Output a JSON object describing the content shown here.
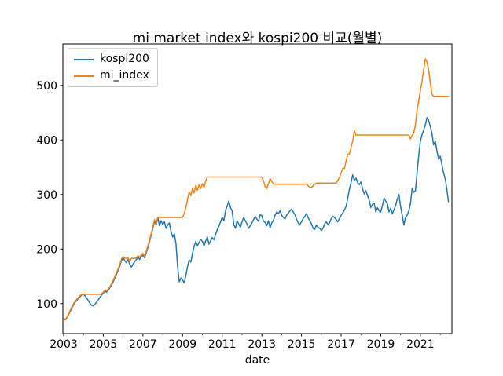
{
  "figure": {
    "title": "mi market index와 kospi200 비교(월별)",
    "xlabel": "date"
  },
  "legend": {
    "position": "upper left",
    "items": [
      {
        "label": "kospi200",
        "color": "#1f77b4"
      },
      {
        "label": "mi_index",
        "color": "#ff7f0e"
      }
    ]
  },
  "chart_data": {
    "type": "line",
    "title": "mi market index와 kospi200 비교(월별)",
    "xlabel": "date",
    "ylabel": "",
    "grid": false,
    "legend_position": "upper left",
    "frequency": "monthly",
    "x_start_year": 2003.0,
    "x_end_year": 2022.4167,
    "xlim": [
      2002.96,
      2022.59
    ],
    "ylim": [
      45,
      576
    ],
    "x_major_ticks": [
      2003,
      2005,
      2007,
      2009,
      2011,
      2013,
      2015,
      2017,
      2019,
      2021
    ],
    "x_minor_ticks": [
      2004,
      2006,
      2008,
      2010,
      2012,
      2014,
      2016,
      2018,
      2020,
      2022
    ],
    "y_ticks": [
      100,
      200,
      300,
      400,
      500
    ],
    "series": [
      {
        "name": "kospi200",
        "color": "#1f77b4",
        "values": [
          72,
          70,
          74,
          80,
          86,
          92,
          98,
          103,
          106,
          110,
          113,
          116,
          117,
          114,
          110,
          105,
          100,
          97,
          96,
          99,
          103,
          107,
          112,
          116,
          119,
          123,
          121,
          125,
          129,
          134,
          140,
          147,
          154,
          161,
          169,
          179,
          183,
          179,
          175,
          181,
          172,
          167,
          172,
          177,
          181,
          185,
          181,
          186,
          189,
          184,
          193,
          203,
          214,
          226,
          238,
          251,
          244,
          258,
          243,
          252,
          245,
          250,
          238,
          244,
          248,
          232,
          222,
          228,
          210,
          168,
          140,
          147,
          143,
          138,
          152,
          168,
          180,
          176,
          192,
          205,
          214,
          206,
          212,
          218,
          214,
          206,
          215,
          222,
          209,
          215,
          221,
          217,
          227,
          236,
          242,
          250,
          258,
          252,
          270,
          279,
          288,
          276,
          270,
          245,
          238,
          252,
          246,
          240,
          250,
          258,
          252,
          246,
          238,
          243,
          248,
          254,
          260,
          255,
          251,
          263,
          261,
          251,
          249,
          243,
          252,
          239,
          248,
          253,
          262,
          268,
          265,
          270,
          262,
          258,
          255,
          262,
          266,
          270,
          273,
          268,
          263,
          255,
          248,
          245,
          250,
          256,
          260,
          265,
          258,
          252,
          247,
          238,
          236,
          244,
          240,
          238,
          234,
          238,
          246,
          250,
          245,
          248,
          256,
          260,
          258,
          254,
          250,
          256,
          262,
          266,
          272,
          278,
          293,
          310,
          322,
          336,
          326,
          330,
          322,
          318,
          323,
          310,
          301,
          307,
          298,
          290,
          276,
          282,
          284,
          268,
          276,
          270,
          268,
          280,
          293,
          288,
          283,
          268,
          275,
          265,
          272,
          280,
          292,
          300,
          278,
          262,
          244,
          258,
          262,
          270,
          284,
          311,
          304,
          307,
          340,
          372,
          398,
          410,
          418,
          428,
          441,
          436,
          425,
          412,
          391,
          398,
          380,
          365,
          370,
          355,
          340,
          329,
          310,
          287
        ]
      },
      {
        "name": "mi_index",
        "color": "#ff7f0e",
        "values": [
          72,
          71,
          75,
          81,
          88,
          94,
          100,
          105,
          108,
          112,
          115,
          117,
          117,
          117,
          117,
          117,
          117,
          117,
          117,
          117,
          117,
          117,
          117,
          118,
          121,
          125,
          123,
          127,
          131,
          137,
          143,
          150,
          157,
          164,
          172,
          182,
          186,
          183,
          183,
          184,
          177,
          183,
          183,
          183,
          184,
          188,
          185,
          190,
          192,
          187,
          196,
          206,
          217,
          229,
          241,
          254,
          247,
          258,
          258,
          258,
          258,
          258,
          258,
          258,
          258,
          258,
          258,
          258,
          258,
          258,
          258,
          258,
          258,
          265,
          276,
          291,
          305,
          298,
          311,
          303,
          317,
          308,
          318,
          311,
          320,
          313,
          325,
          332,
          332,
          332,
          332,
          332,
          332,
          332,
          332,
          332,
          332,
          332,
          332,
          332,
          332,
          332,
          332,
          332,
          332,
          332,
          332,
          332,
          332,
          332,
          332,
          332,
          332,
          332,
          332,
          332,
          332,
          332,
          332,
          332,
          332,
          325,
          314,
          311,
          320,
          329,
          324,
          319,
          319,
          319,
          319,
          319,
          319,
          319,
          319,
          319,
          319,
          319,
          319,
          319,
          319,
          319,
          319,
          319,
          319,
          319,
          319,
          319,
          316,
          313,
          313,
          316,
          319,
          321,
          321,
          321,
          321,
          321,
          321,
          321,
          321,
          321,
          321,
          321,
          321,
          321,
          326,
          331,
          340,
          348,
          348,
          361,
          374,
          374,
          386,
          398,
          417,
          409,
          409,
          409,
          409,
          409,
          409,
          409,
          409,
          409,
          409,
          409,
          409,
          409,
          409,
          409,
          409,
          409,
          409,
          409,
          409,
          409,
          409,
          409,
          409,
          409,
          409,
          409,
          409,
          409,
          409,
          409,
          409,
          409,
          402,
          409,
          413,
          428,
          455,
          472,
          491,
          508,
          530,
          549,
          543,
          528,
          505,
          484,
          480,
          480,
          480,
          480,
          480,
          480,
          480,
          480,
          480,
          480
        ]
      }
    ]
  }
}
